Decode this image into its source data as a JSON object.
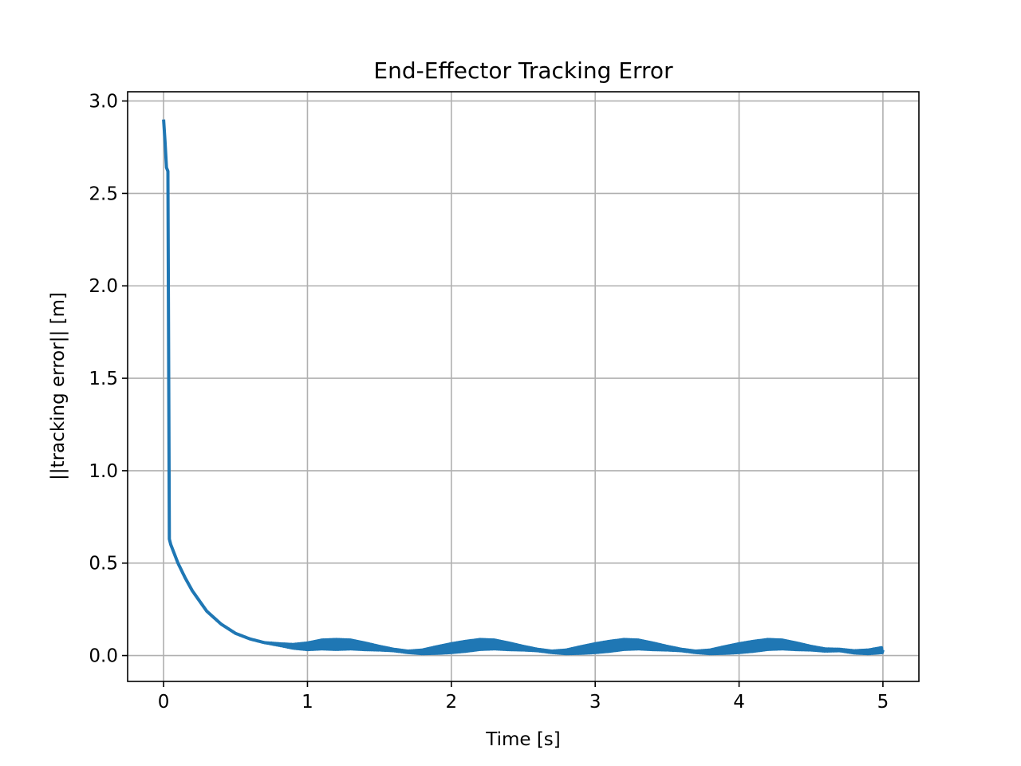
{
  "chart_data": {
    "type": "line",
    "title": "End-Effector Tracking Error",
    "xlabel": "Time [s]",
    "ylabel": "||tracking error|| [m]",
    "xlim": [
      -0.25,
      5.25
    ],
    "ylim": [
      -0.14,
      3.05
    ],
    "xticks": [
      0,
      1,
      2,
      3,
      4,
      5
    ],
    "xtick_labels": [
      "0",
      "1",
      "2",
      "3",
      "4",
      "5"
    ],
    "yticks": [
      0.0,
      0.5,
      1.0,
      1.5,
      2.0,
      2.5,
      3.0
    ],
    "ytick_labels": [
      "0.0",
      "0.5",
      "1.0",
      "1.5",
      "2.0",
      "2.5",
      "3.0"
    ],
    "grid": true,
    "legend": "none",
    "series_color": "#1f77b4",
    "series": [
      {
        "x": [
          0.0,
          0.01,
          0.02,
          0.03,
          0.04,
          0.05,
          0.1,
          0.15,
          0.2,
          0.3,
          0.4,
          0.5,
          0.6,
          0.7,
          0.8,
          0.9,
          1.0,
          1.1,
          1.2,
          1.3,
          1.4,
          1.5,
          1.6,
          1.7,
          1.8,
          1.9,
          2.0,
          2.1,
          2.2,
          2.3,
          2.4,
          2.5,
          2.6,
          2.7,
          2.8,
          2.9,
          3.0,
          3.1,
          3.2,
          3.3,
          3.4,
          3.5,
          3.6,
          3.7,
          3.8,
          3.9,
          4.0,
          4.1,
          4.2,
          4.3,
          4.4,
          4.5,
          4.6,
          4.7,
          4.8,
          4.9,
          5.0
        ],
        "y": [
          2.9,
          2.78,
          2.64,
          2.62,
          0.63,
          0.6,
          0.5,
          0.42,
          0.35,
          0.24,
          0.17,
          0.12,
          0.09,
          0.07,
          0.06,
          0.05,
          0.05,
          0.06,
          0.06,
          0.06,
          0.05,
          0.04,
          0.03,
          0.02,
          0.02,
          0.03,
          0.04,
          0.05,
          0.06,
          0.06,
          0.05,
          0.04,
          0.03,
          0.02,
          0.02,
          0.03,
          0.04,
          0.05,
          0.06,
          0.06,
          0.05,
          0.04,
          0.03,
          0.02,
          0.02,
          0.03,
          0.04,
          0.05,
          0.06,
          0.06,
          0.05,
          0.04,
          0.03,
          0.03,
          0.02,
          0.02,
          0.03
        ],
        "ripple_amplitude": [
          0,
          0,
          0,
          0,
          0,
          0,
          0,
          0,
          0,
          0,
          0,
          0,
          0,
          0,
          0.004,
          0.01,
          0.018,
          0.024,
          0.027,
          0.024,
          0.018,
          0.01,
          0.004,
          0.004,
          0.01,
          0.018,
          0.024,
          0.027,
          0.027,
          0.024,
          0.018,
          0.01,
          0.004,
          0.004,
          0.01,
          0.018,
          0.024,
          0.027,
          0.027,
          0.024,
          0.018,
          0.01,
          0.004,
          0.004,
          0.01,
          0.018,
          0.024,
          0.027,
          0.027,
          0.024,
          0.018,
          0.01,
          0.006,
          0.004,
          0.006,
          0.01,
          0.014
        ]
      }
    ]
  }
}
